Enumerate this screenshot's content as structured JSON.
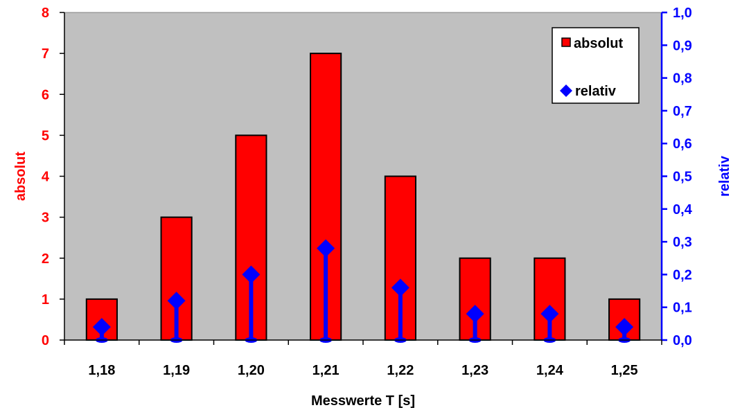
{
  "chart_data": {
    "type": "bar",
    "xlabel": "Messwerte T [s]",
    "ylabel_left": "absolut",
    "ylabel_right": "relativ",
    "categories": [
      "1,18",
      "1,19",
      "1,20",
      "1,21",
      "1,22",
      "1,23",
      "1,24",
      "1,25"
    ],
    "series": [
      {
        "name": "absolut",
        "kind": "bar",
        "axis": "left",
        "values": [
          1,
          3,
          5,
          7,
          4,
          2,
          2,
          1
        ]
      },
      {
        "name": "relativ",
        "kind": "stem-diamond",
        "axis": "right",
        "values": [
          0.04,
          0.12,
          0.2,
          0.28,
          0.16,
          0.08,
          0.08,
          0.04
        ]
      }
    ],
    "ylim_left": [
      0,
      8
    ],
    "yticks_left": [
      "0",
      "1",
      "2",
      "3",
      "4",
      "5",
      "6",
      "7",
      "8"
    ],
    "ylim_right": [
      0,
      1
    ],
    "yticks_right": [
      "0,0",
      "0,1",
      "0,2",
      "0,3",
      "0,4",
      "0,5",
      "0,6",
      "0,7",
      "0,8",
      "0,9",
      "1,0"
    ],
    "legend_position": "top-right",
    "grid": false,
    "colors": {
      "bar": "#ff0000",
      "bar_outline": "#000000",
      "relativ": "#0000ff",
      "left_axis_text": "#ff0000",
      "right_axis_text": "#0000ff",
      "plot_background": "#c0c0c0"
    }
  }
}
